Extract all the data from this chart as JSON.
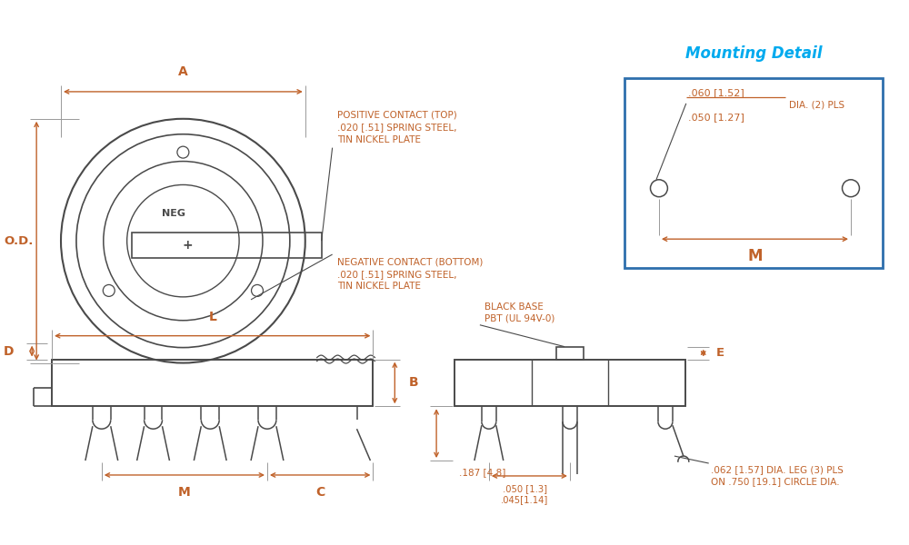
{
  "bg_color": "#ffffff",
  "line_color": "#4a4a4a",
  "dim_color": "#c0622a",
  "blue_color": "#2e6fad",
  "title_color": "#00aaee",
  "title": "Mounting Detail",
  "pos_contact_text": "POSITIVE CONTACT (TOP)\n.020 [.51] SPRING STEEL,\nTIN NICKEL PLATE",
  "neg_contact_text": "NEGATIVE CONTACT (BOTTOM)\n.020 [.51] SPRING STEEL,\nTIN NICKEL PLATE",
  "black_base_text": "BLACK BASE\nPBT (UL 94V-0)",
  "dim_A": "A",
  "dim_OD": "O.D.",
  "dim_L": "L",
  "dim_D": "D",
  "dim_B": "B",
  "dim_C": "C",
  "dim_M": "M",
  "dim_E": "E",
  "mounting_line1": ".060 [1.52]",
  "mounting_line2": ".050 [1.27]",
  "mounting_dia": "DIA. (2) PLS",
  "mounting_M": "M",
  "dim_187": ".187 [4.8]",
  "dim_050_130": ".050 [1.3]",
  "dim_045_114": ".045[1.14]",
  "dim_062": ".062 [1.57] DIA. LEG (3) PLS\nON .750 [19.1] CIRCLE DIA.",
  "neg_label": "NEG",
  "plus_label": "+"
}
